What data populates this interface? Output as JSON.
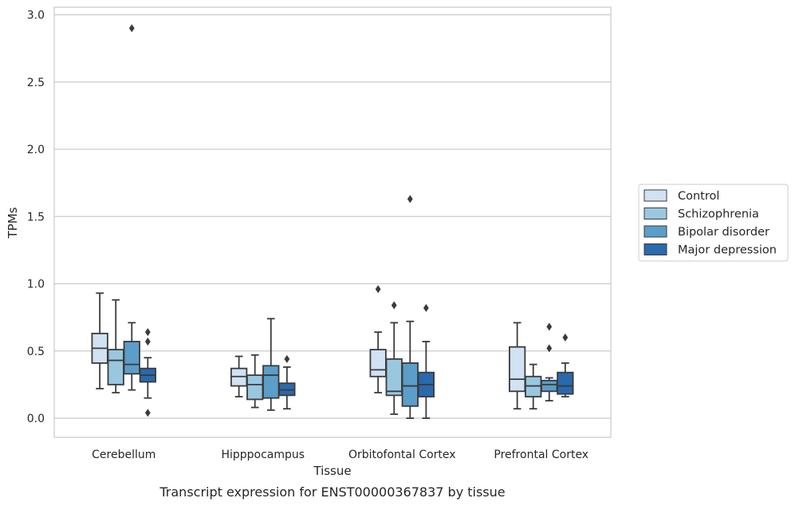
{
  "caption": "Transcript expression for ENST00000367837 by tissue",
  "chart_data": {
    "type": "box",
    "xlabel": "Tissue",
    "ylabel": "TPMs",
    "ylim": [
      -0.14,
      3.05
    ],
    "yticks": [
      "0.0",
      "0.5",
      "1.0",
      "1.5",
      "2.0",
      "2.5",
      "3.0"
    ],
    "grid": "horizontal",
    "legend_position": "right",
    "categories": [
      "Cerebellum",
      "Hipppocampus",
      "Orbitofontal Cortex",
      "Prefrontal Cortex"
    ],
    "series": [
      {
        "name": "Control",
        "color": "#d1e2f2",
        "boxes": [
          {
            "whisker_low": 0.22,
            "q1": 0.41,
            "median": 0.52,
            "q3": 0.63,
            "whisker_high": 0.93,
            "outliers": []
          },
          {
            "whisker_low": 0.16,
            "q1": 0.24,
            "median": 0.31,
            "q3": 0.37,
            "whisker_high": 0.46,
            "outliers": []
          },
          {
            "whisker_low": 0.19,
            "q1": 0.31,
            "median": 0.36,
            "q3": 0.51,
            "whisker_high": 0.64,
            "outliers": [
              0.96
            ]
          },
          {
            "whisker_low": 0.07,
            "q1": 0.2,
            "median": 0.29,
            "q3": 0.53,
            "whisker_high": 0.71,
            "outliers": []
          }
        ]
      },
      {
        "name": "Schizophrenia",
        "color": "#9ac7e0",
        "boxes": [
          {
            "whisker_low": 0.19,
            "q1": 0.25,
            "median": 0.43,
            "q3": 0.51,
            "whisker_high": 0.88,
            "outliers": []
          },
          {
            "whisker_low": 0.08,
            "q1": 0.14,
            "median": 0.25,
            "q3": 0.32,
            "whisker_high": 0.47,
            "outliers": []
          },
          {
            "whisker_low": 0.03,
            "q1": 0.17,
            "median": 0.2,
            "q3": 0.44,
            "whisker_high": 0.71,
            "outliers": [
              0.84
            ]
          },
          {
            "whisker_low": 0.07,
            "q1": 0.16,
            "median": 0.24,
            "q3": 0.31,
            "whisker_high": 0.4,
            "outliers": []
          }
        ]
      },
      {
        "name": "Bipolar disorder",
        "color": "#5a9ec9",
        "boxes": [
          {
            "whisker_low": 0.21,
            "q1": 0.33,
            "median": 0.4,
            "q3": 0.57,
            "whisker_high": 0.71,
            "outliers": [
              2.9
            ]
          },
          {
            "whisker_low": 0.06,
            "q1": 0.15,
            "median": 0.32,
            "q3": 0.39,
            "whisker_high": 0.74,
            "outliers": []
          },
          {
            "whisker_low": 0.0,
            "q1": 0.09,
            "median": 0.24,
            "q3": 0.41,
            "whisker_high": 0.72,
            "outliers": [
              1.63
            ]
          },
          {
            "whisker_low": 0.13,
            "q1": 0.2,
            "median": 0.25,
            "q3": 0.28,
            "whisker_high": 0.3,
            "outliers": [
              0.68,
              0.52
            ]
          }
        ]
      },
      {
        "name": "Major depression",
        "color": "#2a69ad",
        "boxes": [
          {
            "whisker_low": 0.15,
            "q1": 0.27,
            "median": 0.32,
            "q3": 0.37,
            "whisker_high": 0.45,
            "outliers": [
              0.64,
              0.57,
              0.04
            ]
          },
          {
            "whisker_low": 0.07,
            "q1": 0.17,
            "median": 0.21,
            "q3": 0.26,
            "whisker_high": 0.38,
            "outliers": [
              0.44
            ]
          },
          {
            "whisker_low": 0.0,
            "q1": 0.16,
            "median": 0.25,
            "q3": 0.34,
            "whisker_high": 0.57,
            "outliers": [
              0.82
            ]
          },
          {
            "whisker_low": 0.16,
            "q1": 0.18,
            "median": 0.24,
            "q3": 0.34,
            "whisker_high": 0.41,
            "outliers": [
              0.6
            ]
          }
        ]
      }
    ]
  }
}
